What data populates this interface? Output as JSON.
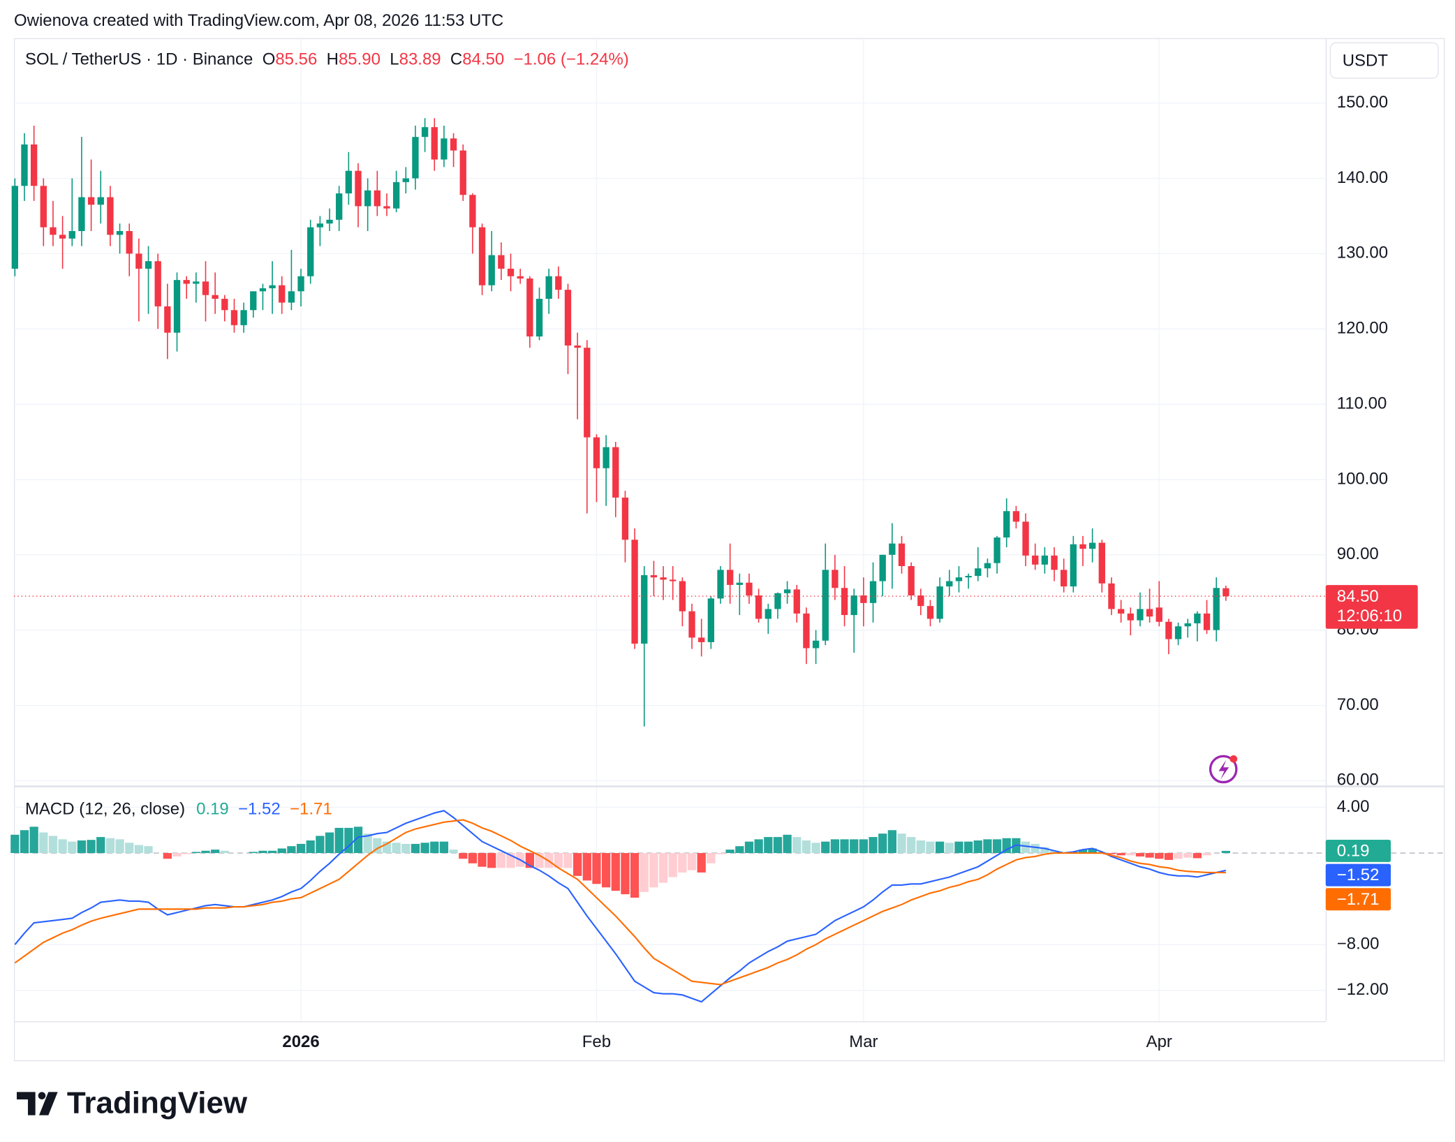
{
  "header": {
    "attribution": "Owienova created with TradingView.com, Apr 08, 2026 11:53 UTC",
    "brand": "TradingView"
  },
  "chart_data": [
    {
      "type": "candlestick",
      "symbol": "SOL / TetherUS · 1D · Binance",
      "ohlc_legend": [
        {
          "key": "O",
          "value": "85.56"
        },
        {
          "key": "H",
          "value": "85.90"
        },
        {
          "key": "L",
          "value": "83.89"
        },
        {
          "key": "C",
          "value": "84.50"
        }
      ],
      "change": "−1.06 (−1.24%)",
      "currency": "USDT",
      "price_badge": [
        "84.50",
        "12:06:10"
      ],
      "color_up": "#089981",
      "color_down": "#f23645",
      "categories": [
        null,
        null,
        null,
        null,
        null,
        null,
        null,
        null,
        null,
        null,
        null,
        null,
        null,
        null,
        null,
        null,
        null,
        null,
        null,
        null,
        null,
        null,
        null,
        null,
        null,
        null,
        null,
        null,
        null,
        null,
        "2026",
        null,
        null,
        null,
        null,
        null,
        null,
        null,
        null,
        null,
        null,
        null,
        null,
        null,
        null,
        null,
        null,
        null,
        null,
        null,
        null,
        null,
        null,
        null,
        null,
        null,
        null,
        null,
        null,
        null,
        null,
        "Feb",
        null,
        null,
        null,
        null,
        null,
        null,
        null,
        null,
        null,
        null,
        null,
        null,
        null,
        null,
        null,
        null,
        null,
        null,
        null,
        null,
        null,
        null,
        null,
        null,
        null,
        null,
        null,
        "Mar",
        null,
        null,
        null,
        null,
        null,
        null,
        null,
        null,
        null,
        null,
        null,
        null,
        null,
        null,
        null,
        null,
        null,
        null,
        null,
        null,
        null,
        null,
        null,
        null,
        null,
        null,
        null,
        null,
        null,
        null,
        "Apr",
        null,
        null,
        null,
        null,
        null,
        null,
        null
      ],
      "open": [
        128,
        139,
        144.5,
        139,
        133.5,
        132.5,
        132,
        133,
        137.5,
        136.5,
        137.5,
        132.5,
        133,
        130,
        128,
        129,
        123,
        119.5,
        126.5,
        126,
        126.3,
        124.5,
        124,
        122.5,
        120.5,
        122.5,
        125,
        125.4,
        125.8,
        123.5,
        125,
        127,
        133.5,
        134,
        134.5,
        138,
        141,
        136.3,
        138.4,
        136.3,
        136,
        139.5,
        140,
        145.5,
        146.8,
        142.5,
        145.3,
        143.7,
        137.8,
        133.5,
        125.8,
        129.8,
        128,
        127,
        126.7,
        119,
        124,
        127,
        125.2,
        117.8,
        117.5,
        105.6,
        101.5,
        104.3,
        97.6,
        92,
        78.2,
        87.3,
        87,
        86.7,
        86.5,
        82.5,
        79,
        78.4,
        84.2,
        88,
        86,
        86.3,
        84.6,
        81.5,
        82.8,
        84.9,
        85.4,
        82.2,
        77.6,
        78.6,
        88,
        85.6,
        82,
        84.6,
        83.6,
        86.5,
        90,
        91.5,
        88.5,
        84.6,
        83.2,
        81.5,
        85.8,
        86.5,
        87,
        87.2,
        88.2,
        88.9,
        92.3,
        95.8,
        94.4,
        89.9,
        88.7,
        89.9,
        88,
        85.8,
        91.4,
        90.8,
        91.6,
        86.2,
        82.8,
        82.2,
        81.3,
        82.8,
        83,
        81.1,
        78.8,
        80.5,
        80.9,
        82.2,
        80,
        85.56
      ],
      "high": [
        140,
        146,
        147,
        140,
        137,
        135,
        140,
        145.5,
        142.5,
        141,
        139,
        134,
        134,
        132,
        131,
        130,
        126,
        127.5,
        127,
        127.5,
        129,
        127.5,
        124.5,
        124,
        123.5,
        125,
        126,
        129,
        127,
        130.5,
        128,
        134.5,
        135,
        136,
        139,
        143.5,
        142,
        140,
        141,
        138,
        141,
        141.5,
        147,
        148,
        148,
        147,
        146,
        144.5,
        138,
        134,
        133,
        131.5,
        130,
        128,
        127,
        125.5,
        128,
        128.3,
        126,
        119.5,
        118.5,
        106,
        105.9,
        105,
        98.5,
        93.5,
        88.5,
        89.2,
        88.5,
        88.5,
        87,
        83.5,
        81.5,
        84.5,
        88.5,
        91.5,
        87.5,
        87.5,
        85.5,
        83.5,
        85,
        86.5,
        86,
        83,
        80,
        91.5,
        90,
        88.5,
        85.5,
        87,
        89,
        90,
        94.2,
        92.5,
        89,
        85.5,
        84,
        87,
        88,
        88.5,
        87.5,
        91,
        89.5,
        92.5,
        97.5,
        96.5,
        95.5,
        91.5,
        91,
        91,
        89.5,
        92.5,
        92.5,
        93.5,
        92,
        87,
        84,
        83,
        85,
        85.5,
        86.5,
        81.5,
        81,
        81.5,
        82.5,
        84,
        87,
        85.9
      ],
      "low": [
        127,
        137,
        137,
        131,
        131,
        128,
        131,
        131,
        133,
        134,
        131,
        130,
        127,
        121,
        122,
        120,
        116,
        117,
        124,
        123.5,
        121,
        122,
        121,
        119.5,
        119.5,
        121.5,
        122.5,
        122,
        122,
        122.5,
        123,
        126,
        131,
        133,
        133,
        136.5,
        133.5,
        133,
        135,
        135,
        135.5,
        138,
        138.5,
        143.5,
        141,
        141.5,
        141.5,
        137,
        130,
        124.5,
        125,
        126.5,
        125,
        126,
        117.5,
        118.5,
        122,
        124,
        114,
        108,
        95.5,
        97,
        96.5,
        95,
        89,
        77.5,
        67.2,
        84.5,
        84,
        84,
        80.5,
        77.5,
        76.5,
        77.5,
        83.5,
        83.5,
        82,
        83.5,
        81,
        79.5,
        81.5,
        83.5,
        81,
        75.5,
        75.5,
        78,
        84,
        80.5,
        77,
        80.5,
        81,
        84.5,
        85.5,
        87.5,
        84,
        82,
        80.5,
        81,
        84.5,
        85,
        85.5,
        86.5,
        87,
        87.5,
        91,
        93.5,
        88.5,
        88,
        87.5,
        86.5,
        85,
        85,
        88.5,
        89,
        85,
        82,
        81,
        79.3,
        80.5,
        81,
        80.5,
        76.8,
        78,
        79,
        78.5,
        79.5,
        78.5,
        83.89
      ],
      "close": [
        139,
        144.5,
        139,
        133.5,
        132.5,
        132,
        133,
        137.5,
        136.5,
        137.5,
        132.5,
        133,
        130,
        128,
        129,
        123,
        119.5,
        126.5,
        126,
        126.3,
        124.5,
        124,
        122.5,
        120.5,
        122.5,
        125,
        125.4,
        125.8,
        123.5,
        125,
        127,
        133.5,
        134,
        134.5,
        138,
        141,
        136.3,
        138.4,
        136.3,
        136,
        139.5,
        140,
        145.5,
        146.8,
        142.5,
        145.3,
        143.7,
        137.8,
        133.5,
        125.8,
        129.8,
        128,
        127,
        126.7,
        119,
        124,
        127,
        125.2,
        117.8,
        117.5,
        105.6,
        101.5,
        104.3,
        97.6,
        92,
        78.2,
        87.3,
        87,
        86.7,
        86.5,
        82.5,
        79,
        78.4,
        84.2,
        88,
        86,
        86.3,
        84.6,
        81.5,
        82.8,
        84.9,
        85.4,
        82.2,
        77.6,
        78.6,
        88,
        85.6,
        82,
        84.6,
        83.6,
        86.5,
        90,
        91.5,
        88.5,
        84.6,
        83.2,
        81.5,
        85.8,
        86.5,
        87,
        87.2,
        88.2,
        88.9,
        92.3,
        95.8,
        94.4,
        89.9,
        88.7,
        89.9,
        88,
        85.8,
        91.4,
        90.8,
        91.6,
        86.2,
        82.8,
        82.2,
        81.3,
        82.8,
        81.8,
        81.1,
        78.8,
        80.5,
        80.9,
        82.2,
        80,
        85.6,
        84.5
      ],
      "ylim": [
        59.3,
        158.5
      ],
      "yticks": [
        {
          "value": 150,
          "label": "150.00"
        },
        {
          "value": 140,
          "label": "140.00"
        },
        {
          "value": 130,
          "label": "130.00"
        },
        {
          "value": 120,
          "label": "120.00"
        },
        {
          "value": 110,
          "label": "110.00"
        },
        {
          "value": 100,
          "label": "100.00"
        },
        {
          "value": 90,
          "label": "90.00"
        },
        {
          "value": 80,
          "label": "80.00"
        },
        {
          "value": 70,
          "label": "70.00"
        },
        {
          "value": 60,
          "label": "60.00"
        }
      ],
      "grid": true
    },
    {
      "type": "macd",
      "title": "MACD (12, 26, close)",
      "legend_values": [
        "0.19",
        "−1.52",
        "−1.71"
      ],
      "series": [
        {
          "kind": "histogram",
          "colors": [
            "#26a69a",
            "#b2dfdb",
            "#ffcdd2",
            "#ff5252"
          ],
          "badge_color": "#22ab94",
          "values": [
            1.6,
            2.0,
            2.3,
            1.8,
            1.5,
            1.2,
            1.0,
            1.1,
            1.15,
            1.4,
            1.3,
            1.2,
            0.9,
            0.7,
            0.6,
            0.0,
            -0.5,
            -0.3,
            -0.1,
            0.1,
            0.2,
            0.3,
            0.2,
            0.0,
            0.0,
            0.1,
            0.2,
            0.2,
            0.4,
            0.6,
            0.8,
            1.1,
            1.5,
            1.8,
            2.2,
            2.2,
            2.3,
            1.7,
            1.3,
            1.0,
            0.9,
            0.8,
            0.8,
            0.9,
            1.0,
            1.0,
            0.3,
            -0.5,
            -0.9,
            -1.2,
            -1.3,
            -1.3,
            -1.3,
            -1.2,
            -1.3,
            -1.3,
            -1.3,
            -1.3,
            -1.3,
            -2.0,
            -2.4,
            -2.7,
            -3.0,
            -3.3,
            -3.6,
            -3.9,
            -3.4,
            -3.0,
            -2.6,
            -2.1,
            -1.7,
            -1.5,
            -1.7,
            -0.9,
            -0.1,
            0.3,
            0.6,
            1.0,
            1.2,
            1.4,
            1.4,
            1.6,
            1.4,
            1.1,
            0.9,
            1.0,
            1.2,
            1.2,
            1.2,
            1.2,
            1.4,
            1.7,
            2.0,
            1.7,
            1.4,
            1.1,
            1.0,
            1.0,
            0.9,
            1.0,
            1.0,
            1.1,
            1.2,
            1.2,
            1.3,
            1.3,
            1.0,
            0.8,
            0.5,
            0.2,
            0.0,
            0.1,
            0.3,
            0.4,
            0.1,
            -0.1,
            -0.2,
            -0.2,
            -0.3,
            -0.4,
            -0.5,
            -0.6,
            -0.5,
            -0.4,
            -0.45,
            -0.2,
            0.0,
            0.19
          ]
        },
        {
          "kind": "line",
          "color": "#2962ff",
          "values": [
            -8.0,
            -7.0,
            -6.1,
            -6.0,
            -5.9,
            -5.8,
            -5.7,
            -5.2,
            -4.8,
            -4.3,
            -4.2,
            -4.1,
            -4.2,
            -4.2,
            -4.3,
            -4.9,
            -5.4,
            -5.2,
            -5.0,
            -4.8,
            -4.6,
            -4.5,
            -4.6,
            -4.7,
            -4.7,
            -4.5,
            -4.3,
            -4.1,
            -3.8,
            -3.4,
            -3.1,
            -2.4,
            -1.6,
            -0.9,
            -0.1,
            0.6,
            1.4,
            1.5,
            1.7,
            1.8,
            2.2,
            2.6,
            2.9,
            3.2,
            3.5,
            3.7,
            3.1,
            2.4,
            1.7,
            1.0,
            0.6,
            0.2,
            -0.2,
            -0.6,
            -1.1,
            -1.5,
            -2.0,
            -2.6,
            -3.1,
            -4.3,
            -5.5,
            -6.6,
            -7.7,
            -8.8,
            -10.0,
            -11.2,
            -11.7,
            -12.2,
            -12.3,
            -12.3,
            -12.4,
            -12.7,
            -13.0,
            -12.3,
            -11.6,
            -10.9,
            -10.3,
            -9.6,
            -9.1,
            -8.6,
            -8.2,
            -7.7,
            -7.5,
            -7.3,
            -7.1,
            -6.5,
            -5.9,
            -5.5,
            -5.1,
            -4.7,
            -4.1,
            -3.4,
            -2.8,
            -2.8,
            -2.7,
            -2.7,
            -2.5,
            -2.3,
            -2.1,
            -1.8,
            -1.5,
            -1.2,
            -0.7,
            -0.2,
            0.3,
            0.7,
            0.6,
            0.5,
            0.4,
            0.2,
            0.0,
            0.1,
            0.3,
            0.4,
            0.1,
            -0.3,
            -0.6,
            -0.9,
            -1.2,
            -1.4,
            -1.7,
            -1.9,
            -2.0,
            -2.0,
            -2.1,
            -1.9,
            -1.7,
            -1.52
          ]
        },
        {
          "kind": "line",
          "color": "#ff6d00",
          "values": [
            -9.6,
            -9.0,
            -8.4,
            -7.8,
            -7.4,
            -7.0,
            -6.7,
            -6.3,
            -5.95,
            -5.7,
            -5.5,
            -5.3,
            -5.1,
            -4.9,
            -4.9,
            -4.9,
            -4.9,
            -4.9,
            -4.9,
            -4.9,
            -4.8,
            -4.8,
            -4.8,
            -4.7,
            -4.7,
            -4.6,
            -4.5,
            -4.3,
            -4.2,
            -4.0,
            -3.9,
            -3.5,
            -3.1,
            -2.7,
            -2.3,
            -1.6,
            -0.9,
            -0.2,
            0.4,
            0.8,
            1.3,
            1.8,
            2.1,
            2.3,
            2.5,
            2.7,
            2.8,
            2.9,
            2.6,
            2.2,
            1.9,
            1.5,
            1.1,
            0.6,
            0.2,
            -0.2,
            -0.7,
            -1.3,
            -1.8,
            -2.3,
            -3.1,
            -3.9,
            -4.7,
            -5.5,
            -6.4,
            -7.3,
            -8.3,
            -9.2,
            -9.7,
            -10.2,
            -10.7,
            -11.2,
            -11.3,
            -11.4,
            -11.5,
            -11.2,
            -10.9,
            -10.6,
            -10.3,
            -10.0,
            -9.6,
            -9.3,
            -8.9,
            -8.4,
            -8.0,
            -7.5,
            -7.1,
            -6.7,
            -6.3,
            -5.9,
            -5.5,
            -5.1,
            -4.8,
            -4.5,
            -4.1,
            -3.8,
            -3.5,
            -3.3,
            -3.0,
            -2.8,
            -2.5,
            -2.3,
            -1.9,
            -1.4,
            -1.0,
            -0.6,
            -0.4,
            -0.3,
            -0.1,
            0.0,
            0.0,
            0.0,
            0.0,
            0.0,
            0.0,
            -0.2,
            -0.4,
            -0.7,
            -0.9,
            -1.0,
            -1.2,
            -1.3,
            -1.5,
            -1.6,
            -1.65,
            -1.7,
            -1.7,
            -1.71
          ]
        }
      ],
      "ylim": [
        -14.7,
        5.7
      ],
      "yticks": [
        {
          "value": 4,
          "label": "4.00"
        },
        {
          "value": -8,
          "label": "−8.00"
        },
        {
          "value": -12,
          "label": "−12.00"
        }
      ],
      "grid": true
    }
  ]
}
